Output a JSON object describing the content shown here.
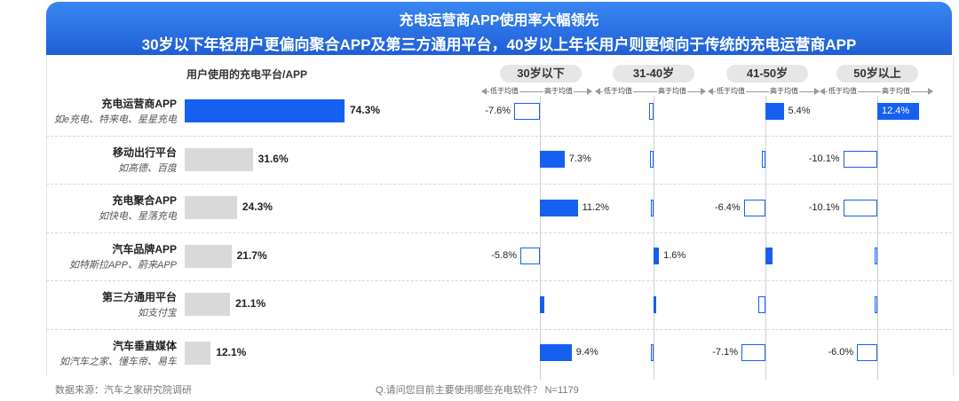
{
  "header": {
    "title": "充电运营商APP使用率大幅领先",
    "subtitle": "30岁以下年轻用户更偏向聚合APP及第三方通用平台，40岁以上年长用户则更倾向于传统的充电运营商APP"
  },
  "colors": {
    "overall_bar": "#d9d9d9",
    "top_bar": "#1560f0",
    "positive": "#1560f0",
    "negative_border": "#1560f0",
    "banner": "#2a73e8"
  },
  "chart_data": {
    "type": "bar",
    "title": "用户使用的充电平台/APP",
    "platforms": [
      {
        "name": "充电运营商APP",
        "examples": "如e充电、特来电、星星充电"
      },
      {
        "name": "移动出行平台",
        "examples": "如高德、百度"
      },
      {
        "name": "充电聚合APP",
        "examples": "如快电、星落充电"
      },
      {
        "name": "汽车品牌APP",
        "examples": "如特斯拉APP、蔚来APP"
      },
      {
        "name": "第三方通用平台",
        "examples": "如支付宝"
      },
      {
        "name": "汽车垂直媒体",
        "examples": "如汽车之家、懂车帝、易车"
      }
    ],
    "overall": {
      "values": [
        74.3,
        31.6,
        24.3,
        21.7,
        21.1,
        12.1
      ],
      "labels": [
        "74.3%",
        "31.6%",
        "24.3%",
        "21.7%",
        "21.1%",
        "12.1%"
      ]
    },
    "axis_low_label": "低于均值",
    "axis_high_label": "高于均值",
    "age_groups": [
      {
        "name": "30岁以下",
        "values": [
          -7.6,
          7.3,
          11.2,
          -5.8,
          1.2,
          9.4
        ],
        "labels": [
          "-7.6%",
          "7.3%",
          "11.2%",
          "-5.8%",
          "",
          "9.4%"
        ]
      },
      {
        "name": "31-40岁",
        "values": [
          -1.2,
          -1.0,
          -0.5,
          1.6,
          0.8,
          -0.4
        ],
        "labels": [
          "",
          "",
          "",
          "1.6%",
          "",
          ""
        ]
      },
      {
        "name": "41-50岁",
        "values": [
          5.4,
          -1.1,
          -6.4,
          2.0,
          -2.0,
          -7.1
        ],
        "labels": [
          "5.4%",
          "",
          "-6.4%",
          "",
          "",
          "-7.1%"
        ]
      },
      {
        "name": "50岁以上",
        "values": [
          12.4,
          -10.1,
          -10.1,
          -0.4,
          -0.6,
          -6.0
        ],
        "labels": [
          "12.4%",
          "-10.1%",
          "-10.1%",
          "",
          "",
          "-6.0%"
        ]
      }
    ]
  },
  "footer": {
    "source": "数据来源：汽车之家研究院调研",
    "question": "Q.请问您目前主要使用哪些充电软件？ N=1179"
  }
}
